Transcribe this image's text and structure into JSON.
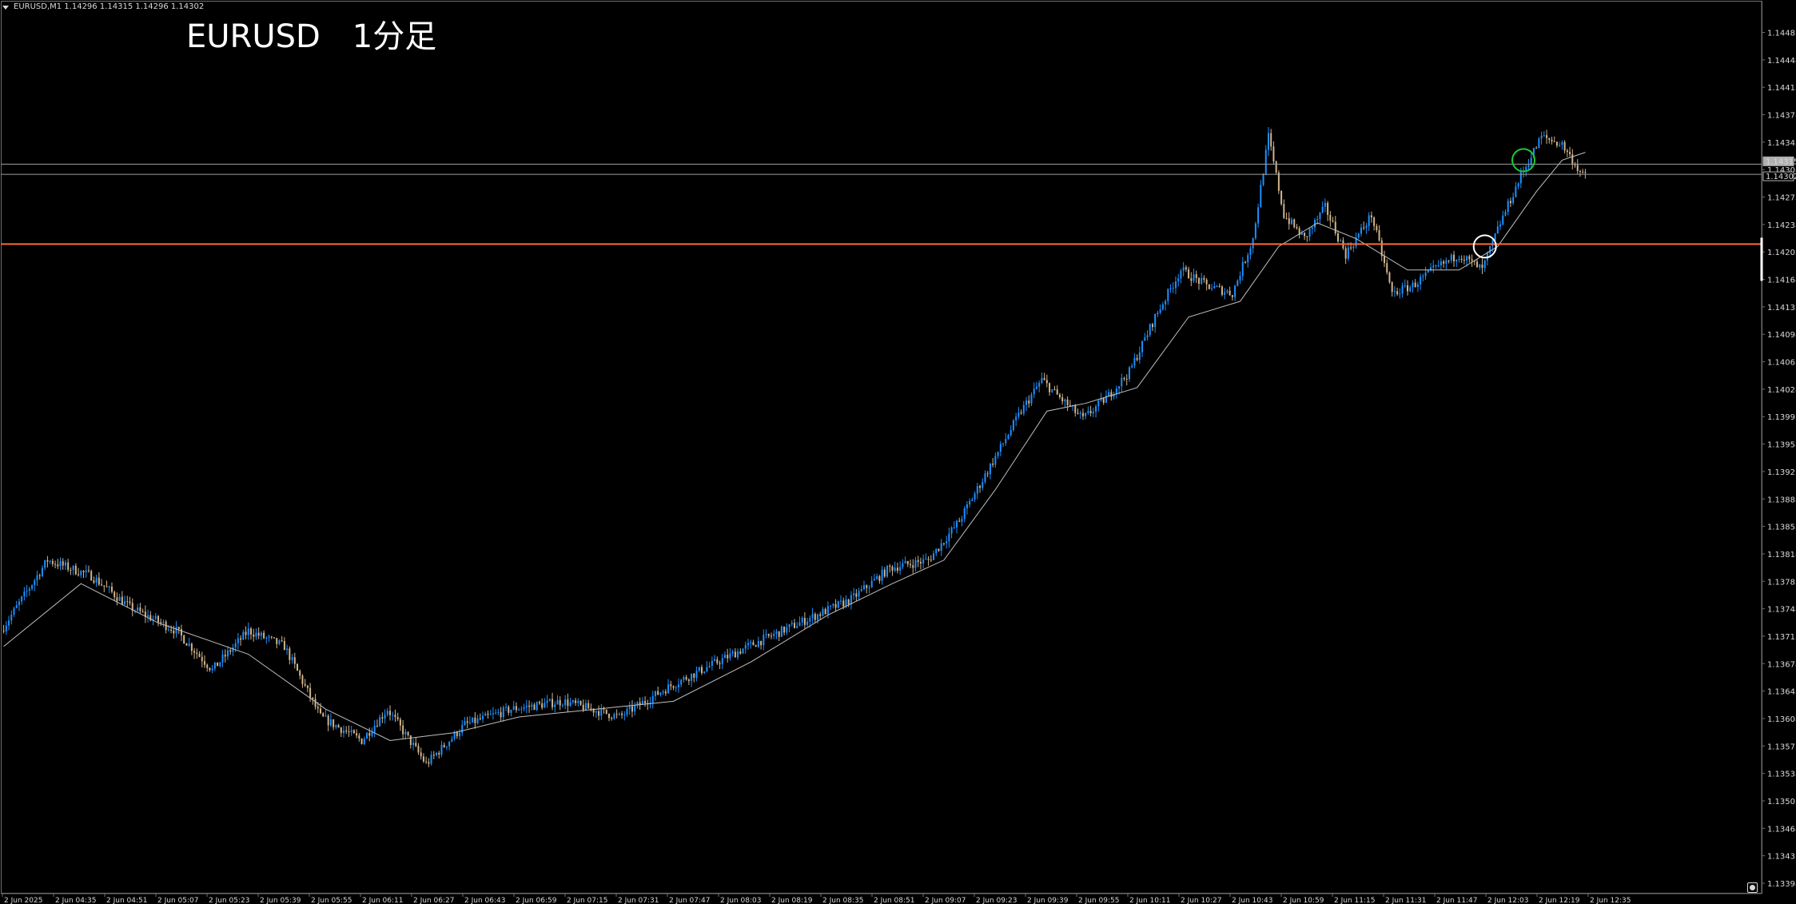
{
  "window": {
    "symbol_header": "EURUSD,M1  1.14296 1.14315 1.14296 1.14302",
    "title": "EURUSD　1分足"
  },
  "colors": {
    "background": "#000000",
    "bull_candle": "#1e90ff",
    "bear_candle": "#d2b48c",
    "moving_average": "#c0c0c0",
    "horizontal_line": "#ff6a2f",
    "bid_line": "#a0a0a0",
    "price_scale_text": "#d8d8d8",
    "green_circle": "#1ec832",
    "white_circle": "#ffffff"
  },
  "price_axis": {
    "labels": [
      "1.14483",
      "1.14448",
      "1.14413",
      "1.14378",
      "1.14343",
      "1.14308",
      "1.14273",
      "1.14238",
      "1.14203",
      "1.14168",
      "1.14133",
      "1.14098",
      "1.14063",
      "1.14028",
      "1.13993",
      "1.13958",
      "1.13923",
      "1.13888",
      "1.13853",
      "1.13818",
      "1.13783",
      "1.13748",
      "1.13713",
      "1.13678",
      "1.13643",
      "1.13608",
      "1.13573",
      "1.13538",
      "1.13503",
      "1.13468",
      "1.13433",
      "1.13398"
    ],
    "current_price_labels": [
      "1.14315",
      "1.14302"
    ]
  },
  "time_axis": {
    "labels": [
      "2 Jun 2025",
      "2 Jun 04:35",
      "2 Jun 04:51",
      "2 Jun 05:07",
      "2 Jun 05:23",
      "2 Jun 05:39",
      "2 Jun 05:55",
      "2 Jun 06:11",
      "2 Jun 06:27",
      "2 Jun 06:43",
      "2 Jun 06:59",
      "2 Jun 07:15",
      "2 Jun 07:31",
      "2 Jun 07:47",
      "2 Jun 08:03",
      "2 Jun 08:19",
      "2 Jun 08:35",
      "2 Jun 08:51",
      "2 Jun 09:07",
      "2 Jun 09:23",
      "2 Jun 09:39",
      "2 Jun 09:55",
      "2 Jun 10:11",
      "2 Jun 10:27",
      "2 Jun 10:43",
      "2 Jun 10:59",
      "2 Jun 11:15",
      "2 Jun 11:31",
      "2 Jun 11:47",
      "2 Jun 12:03",
      "2 Jun 12:19",
      "2 Jun 12:35"
    ]
  },
  "chart_data": {
    "type": "candlestick",
    "symbol": "EURUSD",
    "timeframe": "M1",
    "ylim": [
      1.13398,
      1.1451
    ],
    "horizontal_line": 1.14213,
    "bid_lines": [
      1.14315,
      1.14302
    ],
    "price_path": [
      [
        0,
        1.1372
      ],
      [
        18,
        1.1381
      ],
      [
        35,
        1.1379
      ],
      [
        50,
        1.1375
      ],
      [
        68,
        1.1372
      ],
      [
        82,
        1.1367
      ],
      [
        96,
        1.1372
      ],
      [
        110,
        1.137
      ],
      [
        124,
        1.1361
      ],
      [
        140,
        1.1358
      ],
      [
        150,
        1.1362
      ],
      [
        165,
        1.1355
      ],
      [
        180,
        1.136
      ],
      [
        198,
        1.1362
      ],
      [
        218,
        1.1363
      ],
      [
        240,
        1.1361
      ],
      [
        260,
        1.1365
      ],
      [
        290,
        1.137
      ],
      [
        310,
        1.1373
      ],
      [
        330,
        1.1376
      ],
      [
        345,
        1.138
      ],
      [
        360,
        1.1381
      ],
      [
        372,
        1.1386
      ],
      [
        384,
        1.1393
      ],
      [
        396,
        1.14
      ],
      [
        404,
        1.1404
      ],
      [
        410,
        1.1402
      ],
      [
        420,
        1.1399
      ],
      [
        430,
        1.1402
      ],
      [
        438,
        1.1405
      ],
      [
        448,
        1.1412
      ],
      [
        458,
        1.1418
      ],
      [
        468,
        1.1416
      ],
      [
        478,
        1.1415
      ],
      [
        486,
        1.1422
      ],
      [
        492,
        1.1435
      ],
      [
        498,
        1.1425
      ],
      [
        506,
        1.1422
      ],
      [
        514,
        1.1426
      ],
      [
        522,
        1.142
      ],
      [
        532,
        1.1425
      ],
      [
        540,
        1.1415
      ],
      [
        548,
        1.1416
      ],
      [
        556,
        1.1418
      ],
      [
        566,
        1.142
      ],
      [
        575,
        1.1418
      ],
      [
        582,
        1.1424
      ],
      [
        590,
        1.143
      ],
      [
        598,
        1.1435
      ],
      [
        606,
        1.1434
      ],
      [
        614,
        1.143
      ]
    ],
    "moving_average": [
      [
        0,
        1.137
      ],
      [
        30,
        1.1378
      ],
      [
        60,
        1.1373
      ],
      [
        95,
        1.1369
      ],
      [
        125,
        1.1362
      ],
      [
        150,
        1.1358
      ],
      [
        175,
        1.1359
      ],
      [
        200,
        1.1361
      ],
      [
        230,
        1.1362
      ],
      [
        260,
        1.1363
      ],
      [
        290,
        1.1368
      ],
      [
        320,
        1.1374
      ],
      [
        345,
        1.1378
      ],
      [
        365,
        1.1381
      ],
      [
        385,
        1.139
      ],
      [
        405,
        1.14
      ],
      [
        420,
        1.1401
      ],
      [
        440,
        1.1403
      ],
      [
        460,
        1.1412
      ],
      [
        480,
        1.1414
      ],
      [
        495,
        1.1421
      ],
      [
        510,
        1.1424
      ],
      [
        525,
        1.1422
      ],
      [
        545,
        1.1418
      ],
      [
        565,
        1.1418
      ],
      [
        580,
        1.1421
      ],
      [
        595,
        1.1428
      ],
      [
        605,
        1.1432
      ],
      [
        614,
        1.1433
      ]
    ],
    "bar_count": 615,
    "annotations": [
      {
        "type": "circle",
        "color": "green",
        "bar": 590,
        "price": 1.1432
      },
      {
        "type": "circle",
        "color": "white",
        "bar": 575,
        "price": 1.1421
      }
    ]
  }
}
